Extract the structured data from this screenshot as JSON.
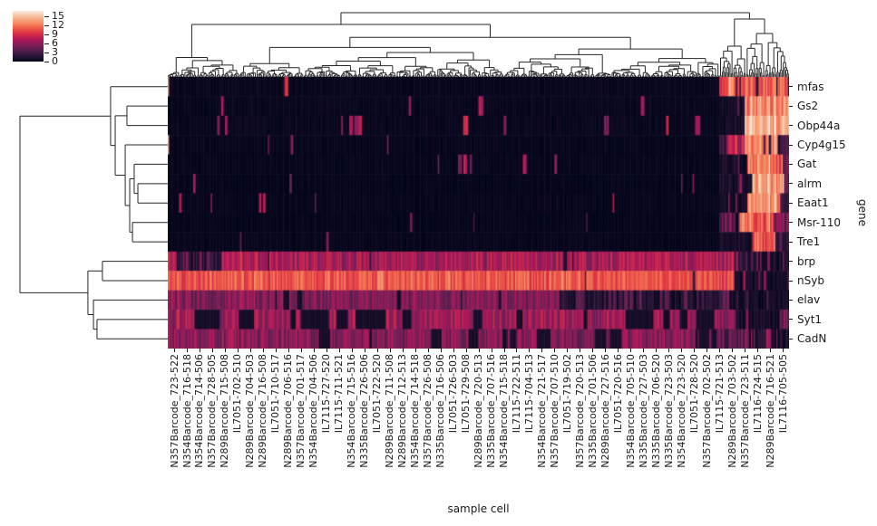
{
  "chart_data": {
    "type": "heatmap",
    "style": "clustermap",
    "title": "",
    "xlabel": "sample cell",
    "ylabel": "gene",
    "rows": [
      "mfas",
      "Gs2",
      "Obp44a",
      "Cyp4g15",
      "Gat",
      "alrm",
      "Eaat1",
      "Msr-110",
      "Tre1",
      "brp",
      "nSyb",
      "elav",
      "Syt1",
      "CadN"
    ],
    "col_tick_labels": [
      "N357Barcode_723-522",
      "N354Barcode_716-518",
      "N354Barcode_714-506",
      "N357Barcode_728-505",
      "N289Barcode_715-508",
      "IL7051-702-510",
      "N289Barcode_704-503",
      "N289Barcode_716-508",
      "IL7051-710-517",
      "N289Barcode_706-516",
      "N357Barcode_701-517",
      "N354Barcode_704-506",
      "IL7115-727-520",
      "IL7115-711-521",
      "N354Barcode_715-516",
      "N335Barcode_726-506",
      "IL7051-722-520",
      "N289Barcode_711-508",
      "N289Barcode_712-513",
      "N354Barcode_714-518",
      "N357Barcode_726-508",
      "N335Barcode_716-506",
      "IL7051-726-503",
      "IL7051-729-508",
      "N289Barcode_720-513",
      "N335Barcode_707-516",
      "N354Barcode_715-518",
      "IL7115-722-511",
      "IL7115-704-513",
      "N354Barcode_721-517",
      "N357Barcode_707-510",
      "IL7051-719-502",
      "N357Barcode_720-513",
      "N335Barcode_701-506",
      "N289Barcode_727-516",
      "IL7051-720-516",
      "N354Barcode_705-510",
      "N335Barcode_727-503",
      "N335Barcode_706-520",
      "N335Barcode_723-503",
      "N354Barcode_723-520",
      "IL7051-728-520",
      "N357Barcode_702-502",
      "IL7115-721-513",
      "N289Barcode_703-502",
      "N357Barcode_723-511",
      "IL7116-724-515",
      "N289Barcode_716-521",
      "IL7116-705-505"
    ],
    "colorbar": {
      "ticks": [
        0,
        3,
        6,
        9,
        12,
        15
      ],
      "vmin": 0,
      "vmax": 16.8,
      "colormap": "rocket",
      "stops": [
        {
          "t": 0.0,
          "c": "#03051A"
        },
        {
          "t": 0.14,
          "c": "#35193E"
        },
        {
          "t": 0.29,
          "c": "#701F57"
        },
        {
          "t": 0.43,
          "c": "#AD1759"
        },
        {
          "t": 0.57,
          "c": "#E13342"
        },
        {
          "t": 0.71,
          "c": "#F37651"
        },
        {
          "t": 0.86,
          "c": "#F6B48F"
        },
        {
          "t": 1.0,
          "c": "#FAEBDD"
        }
      ]
    },
    "n_cols": 490,
    "cluster_split": 0.887,
    "line_color": "#262626",
    "row_profiles": [
      {
        "gene": "mfas",
        "zones": [
          {
            "from": 0,
            "to": 0.003,
            "val": 12,
            "noise": 1
          },
          {
            "from": 0.003,
            "to": 0.887,
            "val": 0.25,
            "noise": 0.25,
            "streak_p": 0.012,
            "streak_val": [
              4,
              9
            ],
            "streak_run": [
              1,
              3
            ]
          },
          {
            "from": 0.887,
            "to": 0.997,
            "val": 11,
            "noise": 2.4,
            "drop_p": 0.06,
            "drop_val": 1.5,
            "drop_run": [
              1,
              2
            ]
          },
          {
            "from": 0.997,
            "to": 1,
            "val": 3,
            "noise": 1
          }
        ]
      },
      {
        "gene": "Gs2",
        "zones": [
          {
            "from": 0,
            "to": 0.887,
            "val": 0.25,
            "noise": 0.25,
            "streak_p": 0.009,
            "streak_val": [
              5,
              8
            ],
            "streak_run": [
              1,
              6
            ]
          },
          {
            "from": 0.887,
            "to": 0.928,
            "val": 0.8,
            "noise": 0.7,
            "streak_p": 0.06,
            "streak_val": [
              3,
              6
            ],
            "streak_run": [
              1,
              2
            ]
          },
          {
            "from": 0.928,
            "to": 1,
            "val": 12.5,
            "noise": 2
          }
        ]
      },
      {
        "gene": "Obp44a",
        "zones": [
          {
            "from": 0,
            "to": 0.887,
            "val": 0.3,
            "noise": 0.3,
            "streak_p": 0.018,
            "streak_val": [
              5,
              9
            ],
            "streak_run": [
              1,
              4
            ]
          },
          {
            "from": 0.887,
            "to": 0.928,
            "val": 0.8,
            "noise": 0.7
          },
          {
            "from": 0.928,
            "to": 1,
            "val": 14.2,
            "noise": 1.4
          }
        ]
      },
      {
        "gene": "Cyp4g15",
        "zones": [
          {
            "from": 0,
            "to": 0.003,
            "val": 12,
            "noise": 1
          },
          {
            "from": 0.003,
            "to": 0.887,
            "val": 0.2,
            "noise": 0.2,
            "streak_p": 0.006,
            "streak_val": [
              4,
              8
            ],
            "streak_run": [
              1,
              2
            ]
          },
          {
            "from": 0.887,
            "to": 0.9,
            "val": 2,
            "noise": 1.5
          },
          {
            "from": 0.9,
            "to": 0.928,
            "val": 8,
            "noise": 2
          },
          {
            "from": 0.928,
            "to": 0.982,
            "val": 12,
            "noise": 2.6,
            "drop_p": 0.08,
            "drop_val": 2,
            "drop_run": [
              1,
              2
            ]
          },
          {
            "from": 0.982,
            "to": 1,
            "val": 2.5,
            "noise": 1.8
          }
        ]
      },
      {
        "gene": "Gat",
        "zones": [
          {
            "from": 0,
            "to": 0.887,
            "val": 0.2,
            "noise": 0.2,
            "streak_p": 0.01,
            "streak_val": [
              4,
              8
            ],
            "streak_run": [
              1,
              3
            ]
          },
          {
            "from": 0.887,
            "to": 0.932,
            "val": 0.9,
            "noise": 0.8,
            "streak_p": 0.05,
            "streak_val": [
              4,
              7
            ],
            "streak_run": [
              1,
              1
            ]
          },
          {
            "from": 0.932,
            "to": 0.99,
            "val": 12,
            "noise": 2.6
          },
          {
            "from": 0.99,
            "to": 1,
            "val": 4,
            "noise": 2
          }
        ]
      },
      {
        "gene": "alrm",
        "zones": [
          {
            "from": 0,
            "to": 0.887,
            "val": 0.15,
            "noise": 0.18,
            "streak_p": 0.006,
            "streak_val": [
              4,
              8
            ],
            "streak_run": [
              1,
              2
            ]
          },
          {
            "from": 0.887,
            "to": 0.94,
            "val": 1,
            "noise": 0.9,
            "streak_p": 0.08,
            "streak_val": [
              5,
              8
            ],
            "streak_run": [
              1,
              2
            ]
          },
          {
            "from": 0.94,
            "to": 0.992,
            "val": 13.4,
            "noise": 1.8
          },
          {
            "from": 0.992,
            "to": 1,
            "val": 5,
            "noise": 2
          }
        ]
      },
      {
        "gene": "Eaat1",
        "zones": [
          {
            "from": 0,
            "to": 0.887,
            "val": 0.2,
            "noise": 0.2,
            "streak_p": 0.008,
            "streak_val": [
              4,
              8
            ],
            "streak_run": [
              1,
              2
            ]
          },
          {
            "from": 0.887,
            "to": 0.932,
            "val": 0.9,
            "noise": 0.8,
            "streak_p": 0.06,
            "streak_val": [
              4,
              8
            ],
            "streak_run": [
              1,
              1
            ]
          },
          {
            "from": 0.932,
            "to": 0.985,
            "val": 12.6,
            "noise": 2.2
          },
          {
            "from": 0.985,
            "to": 1,
            "val": 3,
            "noise": 1.5
          }
        ]
      },
      {
        "gene": "Msr-110",
        "zones": [
          {
            "from": 0,
            "to": 0.887,
            "val": 0.15,
            "noise": 0.18,
            "streak_p": 0.005,
            "streak_val": [
              3,
              6
            ],
            "streak_run": [
              1,
              2
            ]
          },
          {
            "from": 0.887,
            "to": 0.92,
            "val": 2,
            "noise": 1.8,
            "streak_p": 0.2,
            "streak_val": [
              5,
              8
            ],
            "streak_run": [
              1,
              2
            ]
          },
          {
            "from": 0.92,
            "to": 0.975,
            "val": 11,
            "noise": 2.6
          },
          {
            "from": 0.975,
            "to": 1,
            "val": 5.5,
            "noise": 2.4
          }
        ]
      },
      {
        "gene": "Tre1",
        "zones": [
          {
            "from": 0,
            "to": 0.887,
            "val": 0.2,
            "noise": 0.2,
            "streak_p": 0.005,
            "streak_val": [
              3,
              6
            ],
            "streak_run": [
              1,
              2
            ]
          },
          {
            "from": 0.887,
            "to": 0.94,
            "val": 0.9,
            "noise": 0.8
          },
          {
            "from": 0.94,
            "to": 0.978,
            "val": 11,
            "noise": 2.2
          },
          {
            "from": 0.978,
            "to": 1,
            "val": 2.5,
            "noise": 1.5
          }
        ]
      },
      {
        "gene": "brp",
        "zones": [
          {
            "from": 0,
            "to": 0.015,
            "val": 7,
            "noise": 2
          },
          {
            "from": 0.015,
            "to": 0.085,
            "val": 1.8,
            "noise": 1.2,
            "streak_p": 0.15,
            "streak_val": [
              4,
              6
            ],
            "streak_run": [
              1,
              2
            ]
          },
          {
            "from": 0.085,
            "to": 0.887,
            "val": 7,
            "noise": 2.1,
            "drop_p": 0.012,
            "drop_val": 1.6,
            "drop_run": [
              1,
              4
            ]
          },
          {
            "from": 0.887,
            "to": 0.912,
            "val": 7.5,
            "noise": 2.2
          },
          {
            "from": 0.912,
            "to": 1,
            "val": 1,
            "noise": 0.8,
            "streak_p": 0.16,
            "streak_val": [
              3,
              7
            ],
            "streak_run": [
              1,
              2
            ]
          }
        ]
      },
      {
        "gene": "nSyb",
        "zones": [
          {
            "from": 0,
            "to": 0.887,
            "val": 10.6,
            "noise": 1.4,
            "drop_p": 0.007,
            "drop_val": 2.5,
            "drop_run": [
              1,
              2
            ]
          },
          {
            "from": 0.887,
            "to": 0.912,
            "val": 10,
            "noise": 2
          },
          {
            "from": 0.912,
            "to": 1,
            "val": 0.9,
            "noise": 0.7,
            "streak_p": 0.1,
            "streak_val": [
              3,
              9
            ],
            "streak_run": [
              1,
              2
            ]
          }
        ]
      },
      {
        "gene": "elav",
        "zones": [
          {
            "from": 0,
            "to": 0.63,
            "val": 5.6,
            "noise": 1.9,
            "drop_p": 0.02,
            "drop_val": 1,
            "drop_run": [
              1,
              5
            ]
          },
          {
            "from": 0.63,
            "to": 0.887,
            "val": 1.3,
            "noise": 1.1,
            "streak_p": 0.12,
            "streak_val": [
              3,
              5
            ],
            "streak_run": [
              1,
              3
            ]
          },
          {
            "from": 0.887,
            "to": 0.905,
            "val": 4,
            "noise": 1.8
          },
          {
            "from": 0.905,
            "to": 1,
            "val": 0.8,
            "noise": 0.7,
            "streak_p": 0.09,
            "streak_val": [
              2.5,
              5
            ],
            "streak_run": [
              1,
              2
            ]
          }
        ]
      },
      {
        "gene": "Syt1",
        "zones": [
          {
            "from": 0,
            "to": 0.887,
            "val": 6.6,
            "noise": 2.1,
            "drop_p": 0.03,
            "drop_val": 0.9,
            "drop_run": [
              3,
              24
            ]
          },
          {
            "from": 0.887,
            "to": 0.915,
            "val": 6,
            "noise": 2.2
          },
          {
            "from": 0.915,
            "to": 0.985,
            "val": 0.9,
            "noise": 0.8,
            "streak_p": 0.12,
            "streak_val": [
              3,
              6
            ],
            "streak_run": [
              1,
              2
            ]
          },
          {
            "from": 0.985,
            "to": 1,
            "val": 5,
            "noise": 3
          }
        ]
      },
      {
        "gene": "CadN",
        "zones": [
          {
            "from": 0,
            "to": 0.887,
            "val": 5.6,
            "noise": 2,
            "drop_p": 0.025,
            "drop_val": 1,
            "drop_run": [
              2,
              14
            ]
          },
          {
            "from": 0.887,
            "to": 0.93,
            "val": 3.5,
            "noise": 2.2,
            "streak_p": 0.2,
            "streak_val": [
              4,
              7
            ],
            "streak_run": [
              1,
              2
            ]
          },
          {
            "from": 0.93,
            "to": 1,
            "val": 1.2,
            "noise": 1,
            "streak_p": 0.18,
            "streak_val": [
              4,
              8
            ],
            "streak_run": [
              1,
              2
            ]
          }
        ]
      }
    ],
    "row_dendrogram": {
      "d": 0.959,
      "children": [
        {
          "d": 0.371,
          "children": [
            {
              "leaf": 0
            },
            {
              "d": 0.341,
              "children": [
                {
                  "d": 0.265,
                  "children": [
                    {
                      "leaf": 1
                    },
                    {
                      "leaf": 2
                    }
                  ]
                },
                {
                  "d": 0.276,
                  "children": [
                    {
                      "leaf": 3
                    },
                    {
                      "d": 0.247,
                      "children": [
                        {
                          "d": 0.218,
                          "children": [
                            {
                              "leaf": 4
                            },
                            {
                              "d": 0.194,
                              "children": [
                                {
                                  "leaf": 5
                                },
                                {
                                  "leaf": 6
                                }
                              ]
                            }
                          ]
                        },
                        {
                          "d": 0.229,
                          "children": [
                            {
                              "leaf": 7
                            },
                            {
                              "leaf": 8
                            }
                          ]
                        }
                      ]
                    }
                  ]
                }
              ]
            }
          ]
        },
        {
          "d": 0.518,
          "children": [
            {
              "d": 0.424,
              "children": [
                {
                  "leaf": 9
                },
                {
                  "leaf": 10
                }
              ]
            },
            {
              "d": 0.482,
              "children": [
                {
                  "leaf": 11
                },
                {
                  "d": 0.459,
                  "children": [
                    {
                      "leaf": 12
                    },
                    {
                      "leaf": 13
                    }
                  ]
                }
              ]
            }
          ]
        }
      ]
    },
    "column_dendrogram": {
      "leaves": 490,
      "split_fraction": 0.887,
      "seed": 7,
      "group_heights": [
        58,
        64
      ],
      "root_height": 71
    }
  }
}
